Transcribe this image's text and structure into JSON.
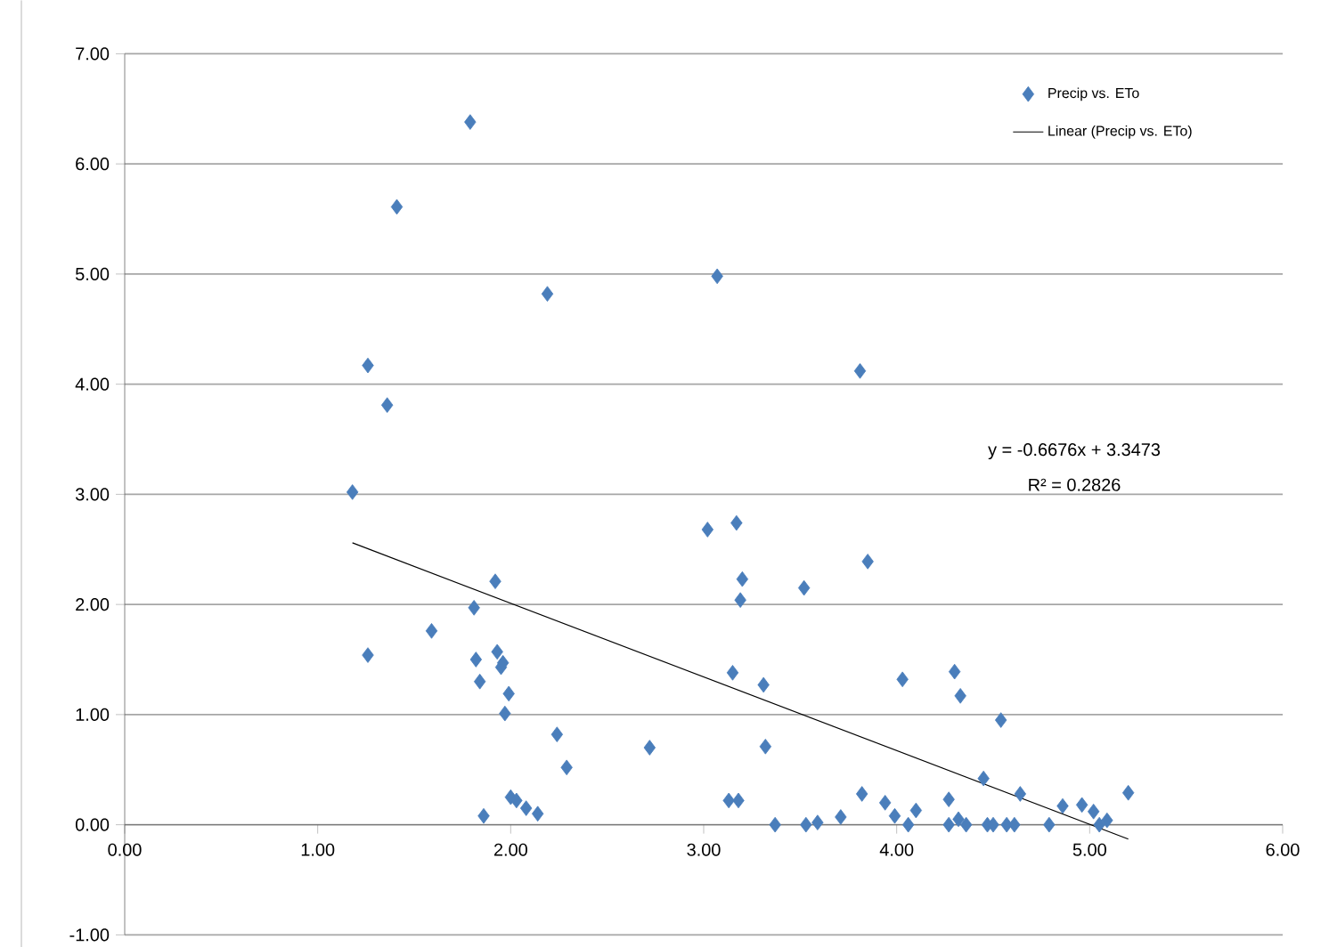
{
  "chart_data": {
    "type": "scatter",
    "xlim": [
      0,
      6
    ],
    "ylim": [
      -1,
      7
    ],
    "xticks": [
      {
        "value": 0,
        "label": "0.00"
      },
      {
        "value": 1,
        "label": "1.00"
      },
      {
        "value": 2,
        "label": "2.00"
      },
      {
        "value": 3,
        "label": "3.00"
      },
      {
        "value": 4,
        "label": "4.00"
      },
      {
        "value": 5,
        "label": "5.00"
      },
      {
        "value": 6,
        "label": "6.00"
      }
    ],
    "yticks": [
      {
        "value": -1,
        "label": "-1.00"
      },
      {
        "value": 0,
        "label": "0.00"
      },
      {
        "value": 1,
        "label": "1.00"
      },
      {
        "value": 2,
        "label": "2.00"
      },
      {
        "value": 3,
        "label": "3.00"
      },
      {
        "value": 4,
        "label": "4.00"
      },
      {
        "value": 5,
        "label": "5.00"
      },
      {
        "value": 6,
        "label": "6.00"
      },
      {
        "value": 7,
        "label": "7.00"
      }
    ],
    "grid": "y",
    "legend": "top right",
    "annotations": [
      "y = -0.6676x + 3.3473",
      "R² = 0.2826"
    ],
    "series": [
      {
        "name": "Precip vs. ETo",
        "marker": "diamond",
        "color": "#4a7ebb",
        "x": [
          1.18,
          1.26,
          1.26,
          1.36,
          1.41,
          1.59,
          1.79,
          1.81,
          1.82,
          1.84,
          1.86,
          1.92,
          1.93,
          1.95,
          1.96,
          1.97,
          1.99,
          2.0,
          2.03,
          2.08,
          2.14,
          2.19,
          2.24,
          2.29,
          2.72,
          3.02,
          3.07,
          3.13,
          3.15,
          3.17,
          3.18,
          3.19,
          3.2,
          3.31,
          3.32,
          3.37,
          3.52,
          3.53,
          3.59,
          3.71,
          3.81,
          3.82,
          3.85,
          3.94,
          3.99,
          4.03,
          4.06,
          4.1,
          4.27,
          4.27,
          4.3,
          4.32,
          4.33,
          4.36,
          4.45,
          4.47,
          4.5,
          4.54,
          4.57,
          4.61,
          4.64,
          4.79,
          4.86,
          4.96,
          5.02,
          5.05,
          5.09,
          5.2
        ],
        "values": [
          3.02,
          4.17,
          1.54,
          3.81,
          5.61,
          1.76,
          6.38,
          1.97,
          1.5,
          1.3,
          0.08,
          2.21,
          1.57,
          1.43,
          1.47,
          1.01,
          1.19,
          0.25,
          0.22,
          0.15,
          0.1,
          4.82,
          0.82,
          0.52,
          0.7,
          2.68,
          4.98,
          0.22,
          1.38,
          2.74,
          0.22,
          2.04,
          2.23,
          1.27,
          0.71,
          0.0,
          2.15,
          0.0,
          0.02,
          0.07,
          4.12,
          0.28,
          2.39,
          0.2,
          0.08,
          1.32,
          0.0,
          0.13,
          0.23,
          0.0,
          1.39,
          0.05,
          1.17,
          0.0,
          0.42,
          0.0,
          0.0,
          0.95,
          0.0,
          0.0,
          0.28,
          0.0,
          0.17,
          0.18,
          0.12,
          0.0,
          0.04,
          0.29
        ]
      },
      {
        "name": "Linear (Precip vs. ETo)",
        "type": "line",
        "color": "#000000",
        "x": [
          1.18,
          5.2
        ],
        "values": [
          2.56,
          -0.13
        ]
      }
    ]
  }
}
